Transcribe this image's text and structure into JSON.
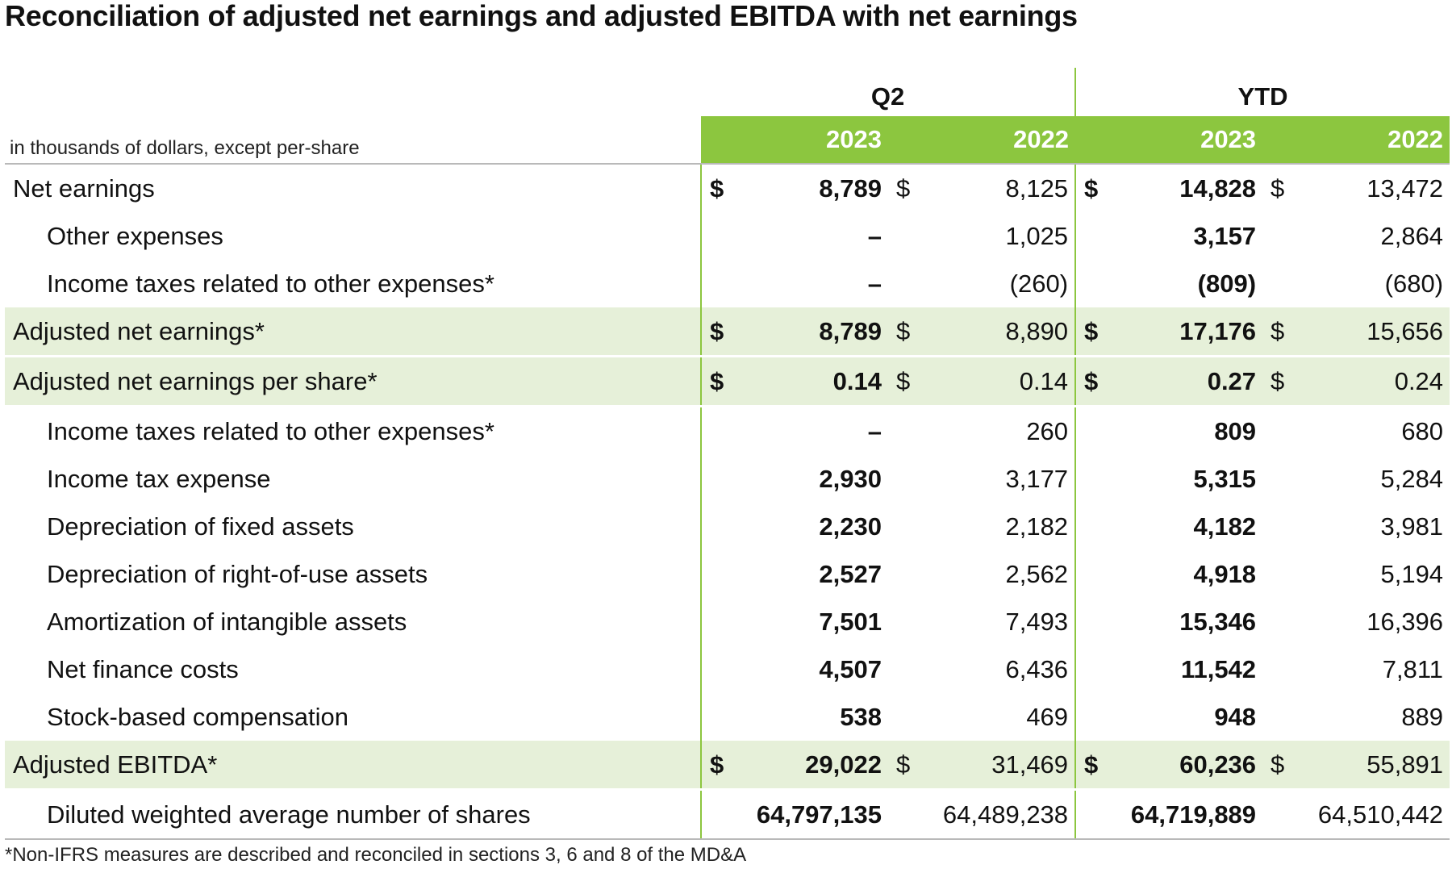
{
  "title": "Reconciliation of adjusted net earnings and adjusted EBITDA with net earnings",
  "units_label": "in thousands of dollars, except per-share",
  "groups": [
    "Q2",
    "YTD"
  ],
  "years": [
    "2023",
    "2022",
    "2023",
    "2022"
  ],
  "rows": [
    {
      "label": "Net earnings",
      "d1": "$",
      "q2_2023": "8,789",
      "d2": "$",
      "q2_2022": "8,125",
      "d3": "$",
      "ytd_2023": "14,828",
      "d4": "$",
      "ytd_2022": "13,472"
    },
    {
      "label": "Other expenses",
      "d1": "",
      "q2_2023": "–",
      "d2": "",
      "q2_2022": "1,025",
      "d3": "",
      "ytd_2023": "3,157",
      "d4": "",
      "ytd_2022": "2,864"
    },
    {
      "label": "Income taxes related to other expenses*",
      "d1": "",
      "q2_2023": "–",
      "d2": "",
      "q2_2022": "(260)",
      "d3": "",
      "ytd_2023": "(809)",
      "d4": "",
      "ytd_2022": "(680)"
    },
    {
      "label": "Adjusted net earnings*",
      "d1": "$",
      "q2_2023": "8,789",
      "d2": "$",
      "q2_2022": "8,890",
      "d3": "$",
      "ytd_2023": "17,176",
      "d4": "$",
      "ytd_2022": "15,656"
    },
    {
      "label": "Adjusted net earnings per share*",
      "d1": "$",
      "q2_2023": "0.14",
      "d2": "$",
      "q2_2022": "0.14",
      "d3": "$",
      "ytd_2023": "0.27",
      "d4": "$",
      "ytd_2022": "0.24"
    },
    {
      "label": "Income taxes related to other expenses*",
      "d1": "",
      "q2_2023": "–",
      "d2": "",
      "q2_2022": "260",
      "d3": "",
      "ytd_2023": "809",
      "d4": "",
      "ytd_2022": "680"
    },
    {
      "label": "Income tax expense",
      "d1": "",
      "q2_2023": "2,930",
      "d2": "",
      "q2_2022": "3,177",
      "d3": "",
      "ytd_2023": "5,315",
      "d4": "",
      "ytd_2022": "5,284"
    },
    {
      "label": "Depreciation of fixed assets",
      "d1": "",
      "q2_2023": "2,230",
      "d2": "",
      "q2_2022": "2,182",
      "d3": "",
      "ytd_2023": "4,182",
      "d4": "",
      "ytd_2022": "3,981"
    },
    {
      "label": "Depreciation of right-of-use assets",
      "d1": "",
      "q2_2023": "2,527",
      "d2": "",
      "q2_2022": "2,562",
      "d3": "",
      "ytd_2023": "4,918",
      "d4": "",
      "ytd_2022": "5,194"
    },
    {
      "label": "Amortization of intangible assets",
      "d1": "",
      "q2_2023": "7,501",
      "d2": "",
      "q2_2022": "7,493",
      "d3": "",
      "ytd_2023": "15,346",
      "d4": "",
      "ytd_2022": "16,396"
    },
    {
      "label": "Net finance costs",
      "d1": "",
      "q2_2023": "4,507",
      "d2": "",
      "q2_2022": "6,436",
      "d3": "",
      "ytd_2023": "11,542",
      "d4": "",
      "ytd_2022": "7,811"
    },
    {
      "label": "Stock-based compensation",
      "d1": "",
      "q2_2023": "538",
      "d2": "",
      "q2_2022": "469",
      "d3": "",
      "ytd_2023": "948",
      "d4": "",
      "ytd_2022": "889"
    },
    {
      "label": "Adjusted EBITDA*",
      "d1": "$",
      "q2_2023": "29,022",
      "d2": "$",
      "q2_2022": "31,469",
      "d3": "$",
      "ytd_2023": "60,236",
      "d4": "$",
      "ytd_2022": "55,891"
    },
    {
      "label": "Diluted weighted average number of shares",
      "d1": "",
      "q2_2023": "64,797,135",
      "d2": "",
      "q2_2022": "64,489,238",
      "d3": "",
      "ytd_2023": "64,719,889",
      "d4": "",
      "ytd_2022": "64,510,442"
    }
  ],
  "footnote": "*Non-IFRS measures are described and reconciled in sections 3, 6 and 8 of the MD&A",
  "colors": {
    "accent_green": "#8cc63f",
    "highlight_row": "#e6f0d9",
    "rule_gray": "#b9b9b9"
  }
}
